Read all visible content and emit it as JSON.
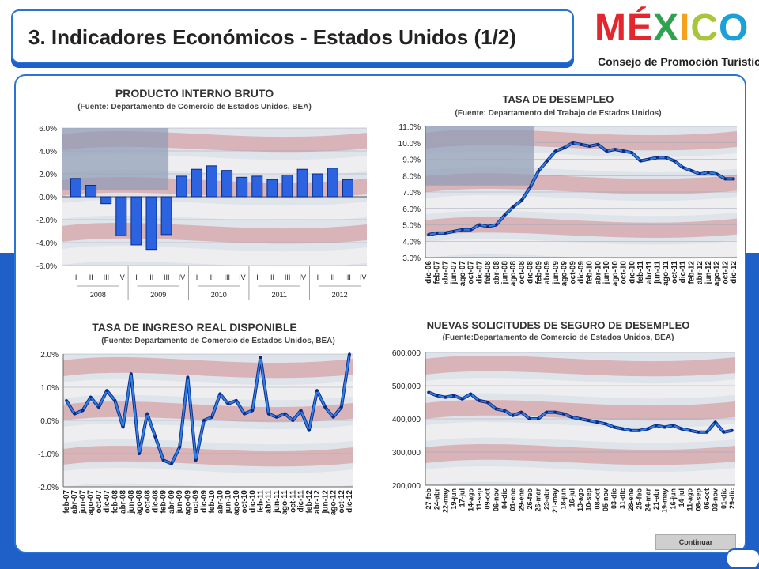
{
  "header": {
    "title": "3. Indicadores Económicos - Estados Unidos (1/2)"
  },
  "logo": {
    "letters": [
      "M",
      "É",
      "X",
      "I",
      "C",
      "O"
    ],
    "colors": [
      "#e4262e",
      "#e4262e",
      "#2fa24f",
      "#f6a21c",
      "#a8c63c",
      "#1ba0d7"
    ],
    "subtitle": "Consejo de Promoción Turística"
  },
  "button": {
    "continue_label": "Continuar"
  },
  "charts": {
    "pib": {
      "title": "PRODUCTO INTERNO BRUTO",
      "source": "(Fuente: Departamento de Comercio de Estados Unidos, BEA)",
      "chart_data": {
        "type": "bar",
        "yticks": [
          "6.0%",
          "4.0%",
          "2.0%",
          "0.0%",
          "-2.0%",
          "-4.0%",
          "-6.0%"
        ],
        "ylim": [
          -6,
          6
        ],
        "quarter_labels": [
          "I",
          "II",
          "III",
          "IV"
        ],
        "years": [
          "2008",
          "2009",
          "2010",
          "2011",
          "2012"
        ],
        "values": [
          1.6,
          1.0,
          -0.6,
          -3.4,
          -4.2,
          -4.6,
          -3.3,
          1.8,
          2.4,
          2.7,
          2.3,
          1.7,
          1.8,
          1.5,
          1.9,
          2.4,
          2.0,
          2.5,
          1.5
        ]
      }
    },
    "desempleo": {
      "title": "TASA DE DESEMPLEO",
      "source": "(Fuente: Departamento del Trabajo de Estados Unidos)",
      "chart_data": {
        "type": "line",
        "yticks": [
          "11.0%",
          "10.0%",
          "9.0%",
          "8.0%",
          "7.0%",
          "6.0%",
          "5.0%",
          "4.0%",
          "3.0%"
        ],
        "ylim": [
          3,
          11
        ],
        "xticks": [
          "dic-06",
          "feb-07",
          "abr-07",
          "jun-07",
          "ago-07",
          "oct-07",
          "dic-07",
          "feb-08",
          "abr-08",
          "jun-08",
          "ago-08",
          "oct-08",
          "dic-08",
          "feb-09",
          "abr-09",
          "jun-09",
          "ago-09",
          "oct-09",
          "dic-09",
          "feb-10",
          "abr-10",
          "jun-10",
          "ago-10",
          "oct-10",
          "dic-10",
          "feb-11",
          "abr-11",
          "jun-11",
          "ago-11",
          "oct-11",
          "dic-11",
          "feb-12",
          "abr-12",
          "jun-12",
          "ago-12",
          "oct-12",
          "dic-12"
        ],
        "values": [
          4.4,
          4.5,
          4.5,
          4.6,
          4.7,
          4.7,
          5.0,
          4.9,
          5.0,
          5.6,
          6.1,
          6.5,
          7.3,
          8.3,
          8.9,
          9.5,
          9.7,
          10.0,
          9.9,
          9.8,
          9.9,
          9.5,
          9.6,
          9.5,
          9.4,
          8.9,
          9.0,
          9.1,
          9.1,
          8.9,
          8.5,
          8.3,
          8.1,
          8.2,
          8.1,
          7.8,
          7.8
        ]
      }
    },
    "ingreso": {
      "title": "TASA DE INGRESO REAL DISPONIBLE",
      "source": "(Fuente: Departamento de Comercio de Estados Unidos, BEA)",
      "chart_data": {
        "type": "line",
        "yticks": [
          "2.0%",
          "1.0%",
          "0.0%",
          "-1.0%",
          "-2.0%"
        ],
        "ylim": [
          -2,
          2
        ],
        "xticks": [
          "feb-07",
          "abr-07",
          "jun-07",
          "ago-07",
          "oct-07",
          "dic-07",
          "feb-08",
          "abr-08",
          "jun-08",
          "ago-08",
          "oct-08",
          "dic-08",
          "feb-09",
          "abr-09",
          "jun-09",
          "ago-09",
          "oct-09",
          "dic-09",
          "feb-10",
          "abr-10",
          "jun-10",
          "ago-10",
          "oct-10",
          "dic-10",
          "feb-11",
          "abr-11",
          "jun-11",
          "ago-11",
          "oct-11",
          "dic-11",
          "feb-12",
          "abr-12",
          "jun-12",
          "ago-12",
          "oct-12",
          "dic-12"
        ],
        "values": [
          0.6,
          0.2,
          0.3,
          0.7,
          0.4,
          0.9,
          0.6,
          -0.2,
          1.4,
          -1.0,
          0.2,
          -0.5,
          -1.2,
          -1.3,
          -0.8,
          1.3,
          -1.2,
          0.0,
          0.1,
          0.8,
          0.5,
          0.6,
          0.2,
          0.3,
          1.9,
          0.2,
          0.1,
          0.2,
          0.0,
          0.3,
          -0.3,
          0.9,
          0.4,
          0.1,
          0.4,
          2.0
        ]
      }
    },
    "solicitudes": {
      "title": "NUEVAS SOLICITUDES DE SEGURO DE DESEMPLEO",
      "source": "(Fuente:Departamento de Comercio de Estados Unidos, BEA)",
      "chart_data": {
        "type": "line",
        "yticks": [
          "600,000",
          "500,000",
          "400,000",
          "300,000",
          "200,000"
        ],
        "ylim": [
          200000,
          600000
        ],
        "xticks": [
          "27-feb",
          "24-abr",
          "22-may",
          "19-jun",
          "17-jul",
          "14-ago",
          "11-sep",
          "09-oct",
          "06-nov",
          "04-dic",
          "01-ene",
          "29-ene",
          "26-feb",
          "26-mar",
          "23-abr",
          "21-may",
          "18-jun",
          "16-jul",
          "13-ago",
          "10-sep",
          "08-oct",
          "05-nov",
          "03-dic",
          "31-dic",
          "28-ene",
          "25-feb",
          "24-mar",
          "21-abr",
          "19-may",
          "16-jun",
          "14-jul",
          "11-ago",
          "08-sep",
          "06-oct",
          "03-nov",
          "01-dic",
          "29-dic"
        ],
        "values": [
          480000,
          470000,
          465000,
          470000,
          460000,
          475000,
          455000,
          450000,
          430000,
          425000,
          410000,
          420000,
          400000,
          400000,
          420000,
          420000,
          415000,
          405000,
          400000,
          395000,
          390000,
          385000,
          375000,
          370000,
          365000,
          365000,
          370000,
          380000,
          375000,
          380000,
          370000,
          365000,
          360000,
          360000,
          390000,
          360000,
          365000
        ]
      }
    }
  }
}
